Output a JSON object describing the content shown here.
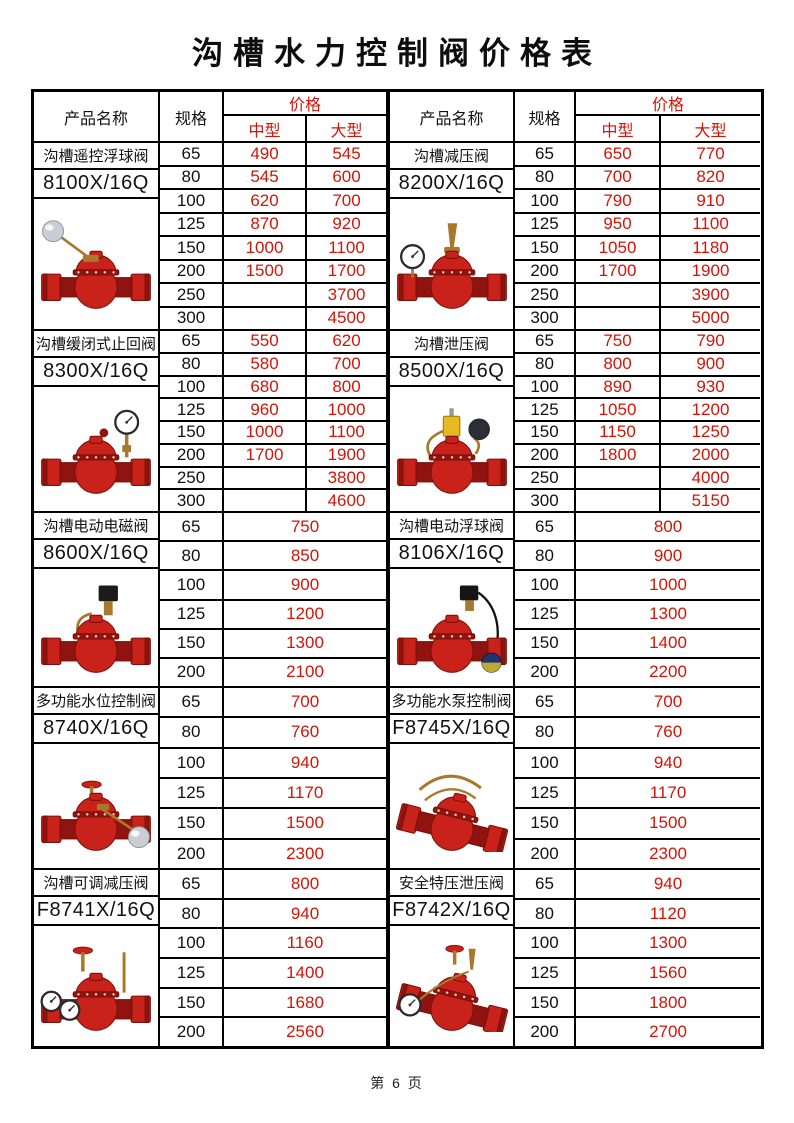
{
  "page": {
    "title": "沟槽水力控制阀价格表",
    "footer": "第 6 页"
  },
  "table_header": {
    "product": "产品名称",
    "spec": "规格",
    "price": "价格",
    "medium": "中型",
    "large": "大型"
  },
  "colors": {
    "price_red": "#d41408",
    "border_black": "#000000"
  },
  "halves": {
    "left": [
      {
        "name": "沟槽遥控浮球阀",
        "model": "8100X/16Q",
        "photo": "float-ball-valve",
        "rows": [
          {
            "spec": "65",
            "medium": "490",
            "large": "545"
          },
          {
            "spec": "80",
            "medium": "545",
            "large": "600"
          },
          {
            "spec": "100",
            "medium": "620",
            "large": "700"
          },
          {
            "spec": "125",
            "medium": "870",
            "large": "920"
          },
          {
            "spec": "150",
            "medium": "1000",
            "large": "1100"
          },
          {
            "spec": "200",
            "medium": "1500",
            "large": "1700"
          },
          {
            "spec": "250",
            "medium": "",
            "large": "3700"
          },
          {
            "spec": "300",
            "medium": "",
            "large": "4500"
          }
        ]
      },
      {
        "name": "沟槽缓闭式止回阀",
        "model": "8300X/16Q",
        "photo": "gauge-check-valve",
        "rows": [
          {
            "spec": "65",
            "medium": "550",
            "large": "620"
          },
          {
            "spec": "80",
            "medium": "580",
            "large": "700"
          },
          {
            "spec": "100",
            "medium": "680",
            "large": "800"
          },
          {
            "spec": "125",
            "medium": "960",
            "large": "1000"
          },
          {
            "spec": "150",
            "medium": "1000",
            "large": "1100"
          },
          {
            "spec": "200",
            "medium": "1700",
            "large": "1900"
          },
          {
            "spec": "250",
            "medium": "",
            "large": "3800"
          },
          {
            "spec": "300",
            "medium": "",
            "large": "4600"
          }
        ]
      },
      {
        "name": "沟槽电动电磁阀",
        "model": "8600X/16Q",
        "photo": "solenoid-valve",
        "rows": [
          {
            "spec": "65",
            "price": "750"
          },
          {
            "spec": "80",
            "price": "850"
          },
          {
            "spec": "100",
            "price": "900"
          },
          {
            "spec": "125",
            "price": "1200"
          },
          {
            "spec": "150",
            "price": "1300"
          },
          {
            "spec": "200",
            "price": "2100"
          }
        ]
      },
      {
        "name": "多功能水位控制阀",
        "model": "8740X/16Q",
        "photo": "level-control-valve",
        "rows": [
          {
            "spec": "65",
            "price": "700"
          },
          {
            "spec": "80",
            "price": "760"
          },
          {
            "spec": "100",
            "price": "940"
          },
          {
            "spec": "125",
            "price": "1170"
          },
          {
            "spec": "150",
            "price": "1500"
          },
          {
            "spec": "200",
            "price": "2300"
          }
        ]
      },
      {
        "name": "沟槽可调减压阀",
        "model": "F8741X/16Q",
        "photo": "adjustable-reducing-valve",
        "rows": [
          {
            "spec": "65",
            "price": "800"
          },
          {
            "spec": "80",
            "price": "940"
          },
          {
            "spec": "100",
            "price": "1160"
          },
          {
            "spec": "125",
            "price": "1400"
          },
          {
            "spec": "150",
            "price": "1680"
          },
          {
            "spec": "200",
            "price": "2560"
          }
        ]
      }
    ],
    "right": [
      {
        "name": "沟槽减压阀",
        "model": "8200X/16Q",
        "photo": "pressure-reducing-valve",
        "rows": [
          {
            "spec": "65",
            "medium": "650",
            "large": "770"
          },
          {
            "spec": "80",
            "medium": "700",
            "large": "820"
          },
          {
            "spec": "100",
            "medium": "790",
            "large": "910"
          },
          {
            "spec": "125",
            "medium": "950",
            "large": "1100"
          },
          {
            "spec": "150",
            "medium": "1050",
            "large": "1180"
          },
          {
            "spec": "200",
            "medium": "1700",
            "large": "1900"
          },
          {
            "spec": "250",
            "medium": "",
            "large": "3900"
          },
          {
            "spec": "300",
            "medium": "",
            "large": "5000"
          }
        ]
      },
      {
        "name": "沟槽泄压阀",
        "model": "8500X/16Q",
        "photo": "relief-valve",
        "rows": [
          {
            "spec": "65",
            "medium": "750",
            "large": "790"
          },
          {
            "spec": "80",
            "medium": "800",
            "large": "900"
          },
          {
            "spec": "100",
            "medium": "890",
            "large": "930"
          },
          {
            "spec": "125",
            "medium": "1050",
            "large": "1200"
          },
          {
            "spec": "150",
            "medium": "1150",
            "large": "1250"
          },
          {
            "spec": "200",
            "medium": "1800",
            "large": "2000"
          },
          {
            "spec": "250",
            "medium": "",
            "large": "4000"
          },
          {
            "spec": "300",
            "medium": "",
            "large": "5150"
          }
        ]
      },
      {
        "name": "沟槽电动浮球阀",
        "model": "8106X/16Q",
        "photo": "electric-float-valve",
        "rows": [
          {
            "spec": "65",
            "price": "800"
          },
          {
            "spec": "80",
            "price": "900"
          },
          {
            "spec": "100",
            "price": "1000"
          },
          {
            "spec": "125",
            "price": "1300"
          },
          {
            "spec": "150",
            "price": "1400"
          },
          {
            "spec": "200",
            "price": "2200"
          }
        ]
      },
      {
        "name": "多功能水泵控制阀",
        "model": "F8745X/16Q",
        "photo": "pump-control-valve",
        "rows": [
          {
            "spec": "65",
            "price": "700"
          },
          {
            "spec": "80",
            "price": "760"
          },
          {
            "spec": "100",
            "price": "940"
          },
          {
            "spec": "125",
            "price": "1170"
          },
          {
            "spec": "150",
            "price": "1500"
          },
          {
            "spec": "200",
            "price": "2300"
          }
        ]
      },
      {
        "name": "安全特压泄压阀",
        "model": "F8742X/16Q",
        "photo": "safety-relief-valve",
        "rows": [
          {
            "spec": "65",
            "price": "940"
          },
          {
            "spec": "80",
            "price": "1120"
          },
          {
            "spec": "100",
            "price": "1300"
          },
          {
            "spec": "125",
            "price": "1560"
          },
          {
            "spec": "150",
            "price": "1800"
          },
          {
            "spec": "200",
            "price": "2700"
          }
        ]
      }
    ]
  }
}
